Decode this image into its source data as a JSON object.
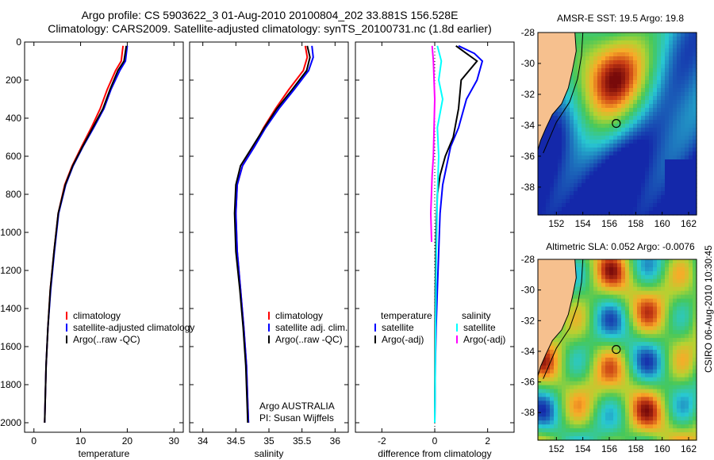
{
  "header": {
    "line1": "Argo profile: CS 5903622_3 01-Aug-2010 20100804_202 33.881S 156.528E",
    "line2": "Climatology: CARS2009. Satellite-adjusted climatology: synTS_20100731.nc (1.8d earlier)"
  },
  "maps": {
    "sst_title": "AMSR-E SST: 19.5 Argo: 19.8",
    "sla_title": "Altimetric SLA: 0.052 Argo: -0.0076",
    "lon_ticks": [
      "152",
      "154",
      "156",
      "158",
      "160",
      "162"
    ],
    "lat_ticks": [
      "-28",
      "-30",
      "-32",
      "-34",
      "-36",
      "-38"
    ],
    "float_position": {
      "lon": 156.528,
      "lat": -33.881
    },
    "land_color": "#f6c08e"
  },
  "stamp": "CSIRO 06-Aug-2010 10:30:45",
  "colors": {
    "climatology": "#ff0000",
    "satellite": "#0000ff",
    "argo": "#000000",
    "sat_diff": "#00ffff",
    "argo_diff": "#ff00ff"
  },
  "chart_data": [
    {
      "type": "line",
      "xlabel": "temperature",
      "ylabel": "",
      "xlim": [
        -2,
        32
      ],
      "ylim": [
        2050,
        0
      ],
      "xticks": [
        0,
        10,
        20,
        30
      ],
      "yticks": [
        0,
        200,
        400,
        600,
        800,
        1000,
        1200,
        1400,
        1600,
        1800,
        2000
      ],
      "legend": [
        "climatology",
        "satellite-adjusted climatology",
        "Argo(..raw -QC)"
      ],
      "series": [
        {
          "name": "climatology",
          "color": "#ff0000",
          "x": [
            19.1,
            18.7,
            17.5,
            15.7,
            14.2,
            12.3,
            10.2,
            8.2,
            6.6,
            5.2,
            4.3,
            3.5,
            3.0,
            2.6,
            2.4,
            2.3
          ],
          "y": [
            20,
            100,
            150,
            250,
            350,
            450,
            550,
            650,
            750,
            900,
            1100,
            1300,
            1500,
            1700,
            1900,
            2000
          ]
        },
        {
          "name": "satellite-adjusted climatology",
          "color": "#0000ff",
          "x": [
            20.0,
            19.6,
            18.4,
            16.5,
            15.0,
            12.8,
            10.5,
            8.4,
            6.8,
            5.3,
            4.4,
            3.6,
            3.0,
            2.6,
            2.4,
            2.3
          ],
          "y": [
            20,
            100,
            150,
            250,
            350,
            450,
            550,
            650,
            750,
            900,
            1100,
            1300,
            1500,
            1700,
            1900,
            2000
          ]
        },
        {
          "name": "Argo(..raw -QC)",
          "color": "#000000",
          "x": [
            19.8,
            19.3,
            18.0,
            16.3,
            14.8,
            12.6,
            10.4,
            8.3,
            6.7,
            5.2,
            4.3,
            3.5,
            3.0,
            2.6,
            2.4,
            2.3
          ],
          "y": [
            20,
            100,
            150,
            250,
            350,
            450,
            550,
            650,
            750,
            900,
            1100,
            1300,
            1500,
            1700,
            1900,
            2000
          ]
        }
      ]
    },
    {
      "type": "line",
      "xlabel": "salinity",
      "ylabel": "",
      "xlim": [
        33.8,
        36.2
      ],
      "ylim": [
        2050,
        0
      ],
      "xticks": [
        34,
        34.5,
        35,
        35.5,
        36
      ],
      "yticks": [
        0,
        200,
        400,
        600,
        800,
        1000,
        1200,
        1400,
        1600,
        1800,
        2000
      ],
      "legend": [
        "climatology",
        "satellite adj. clim.",
        "Argo(..raw -QC)"
      ],
      "annotation": [
        "Argo AUSTRALIA",
        "PI: Susan Wijffels"
      ],
      "series": [
        {
          "name": "climatology",
          "color": "#ff0000",
          "x": [
            35.55,
            35.58,
            35.52,
            35.3,
            35.1,
            34.92,
            34.77,
            34.6,
            34.52,
            34.5,
            34.52,
            34.57,
            34.62,
            34.66,
            34.68,
            34.69
          ],
          "y": [
            20,
            80,
            150,
            250,
            350,
            450,
            550,
            650,
            750,
            900,
            1100,
            1300,
            1500,
            1700,
            1900,
            2000
          ]
        },
        {
          "name": "satellite adj. clim.",
          "color": "#0000ff",
          "x": [
            35.65,
            35.67,
            35.6,
            35.38,
            35.15,
            34.95,
            34.78,
            34.6,
            34.52,
            34.5,
            34.52,
            34.57,
            34.62,
            34.66,
            34.68,
            34.69
          ],
          "y": [
            20,
            80,
            150,
            250,
            350,
            450,
            550,
            650,
            750,
            900,
            1100,
            1300,
            1500,
            1700,
            1900,
            2000
          ]
        },
        {
          "name": "Argo(..raw -QC)",
          "color": "#000000",
          "x": [
            35.58,
            35.62,
            35.57,
            35.35,
            35.12,
            34.93,
            34.75,
            34.57,
            34.5,
            34.48,
            34.5,
            34.56,
            34.61,
            34.65,
            34.67,
            34.68
          ],
          "y": [
            20,
            80,
            150,
            250,
            350,
            450,
            550,
            650,
            750,
            900,
            1100,
            1300,
            1500,
            1700,
            1900,
            2000
          ]
        }
      ]
    },
    {
      "type": "line",
      "xlabel": "difference from climatology",
      "ylabel": "",
      "xlim": [
        -3,
        3
      ],
      "ylim": [
        2050,
        0
      ],
      "xticks": [
        -2,
        0,
        2
      ],
      "yticks": [
        0,
        200,
        400,
        600,
        800,
        1000,
        1200,
        1400,
        1600,
        1800,
        2000
      ],
      "legend": [
        "temperature",
        "satellite",
        "Argo(-adj)",
        "salinity",
        "satellite",
        "Argo(-adj)"
      ],
      "series": [
        {
          "name": "temperature satellite",
          "color": "#0000ff",
          "x": [
            0.9,
            1.5,
            1.8,
            1.6,
            1.2,
            0.9,
            0.6,
            0.45,
            0.3,
            0.2,
            0.15,
            0.1,
            0.05,
            0.02,
            0.0
          ],
          "y": [
            20,
            60,
            100,
            200,
            300,
            450,
            550,
            650,
            750,
            900,
            1100,
            1300,
            1500,
            1700,
            2000
          ]
        },
        {
          "name": "temperature Argo(-adj)",
          "color": "#000000",
          "x": [
            0.8,
            1.2,
            1.6,
            1.0,
            0.9,
            0.7,
            0.4,
            0.2,
            0.1,
            0.05,
            0.02,
            0.0
          ],
          "y": [
            20,
            60,
            100,
            200,
            350,
            500,
            600,
            700,
            800,
            1000,
            1300,
            2000
          ]
        },
        {
          "name": "salinity satellite",
          "color": "#00ffff",
          "x": [
            0.1,
            0.25,
            0.15,
            0.3,
            0.1,
            0.15,
            0.1,
            0.05,
            0.0
          ],
          "y": [
            20,
            100,
            200,
            300,
            450,
            600,
            800,
            1200,
            2000
          ]
        },
        {
          "name": "salinity Argo(-adj)",
          "color": "#ff00ff",
          "x": [
            -0.1,
            -0.05,
            0.0,
            -0.05,
            -0.1,
            -0.15,
            -0.12
          ],
          "y": [
            20,
            100,
            300,
            600,
            700,
            900,
            1050
          ]
        }
      ]
    }
  ]
}
